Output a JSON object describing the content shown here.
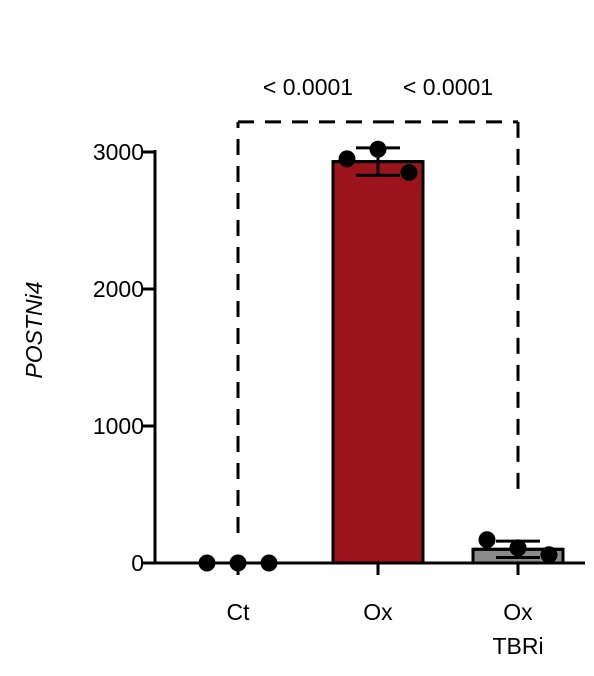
{
  "chart_data": {
    "type": "bar",
    "ylabel": "POSTNi4",
    "ylim": [
      0,
      3000
    ],
    "yticks": [
      0,
      1000,
      2000,
      3000
    ],
    "categories": [
      {
        "lines": [
          "Ct"
        ]
      },
      {
        "lines": [
          "Ox"
        ]
      },
      {
        "lines": [
          "Ox",
          "TBRi"
        ]
      }
    ],
    "values": [
      0,
      2930,
      100
    ],
    "errors": [
      0,
      100,
      60
    ],
    "bar_colors": [
      "#ffffff",
      "#9b141c",
      "#8a8a8a"
    ],
    "points": [
      [
        0,
        0,
        0
      ],
      [
        2950,
        3020,
        2850
      ],
      [
        170,
        110,
        60
      ]
    ],
    "comparisons": [
      {
        "from": 0,
        "to": 1,
        "label": "< 0.0001"
      },
      {
        "from": 1,
        "to": 2,
        "label": "< 0.0001"
      }
    ],
    "bracket_level": 3220
  }
}
